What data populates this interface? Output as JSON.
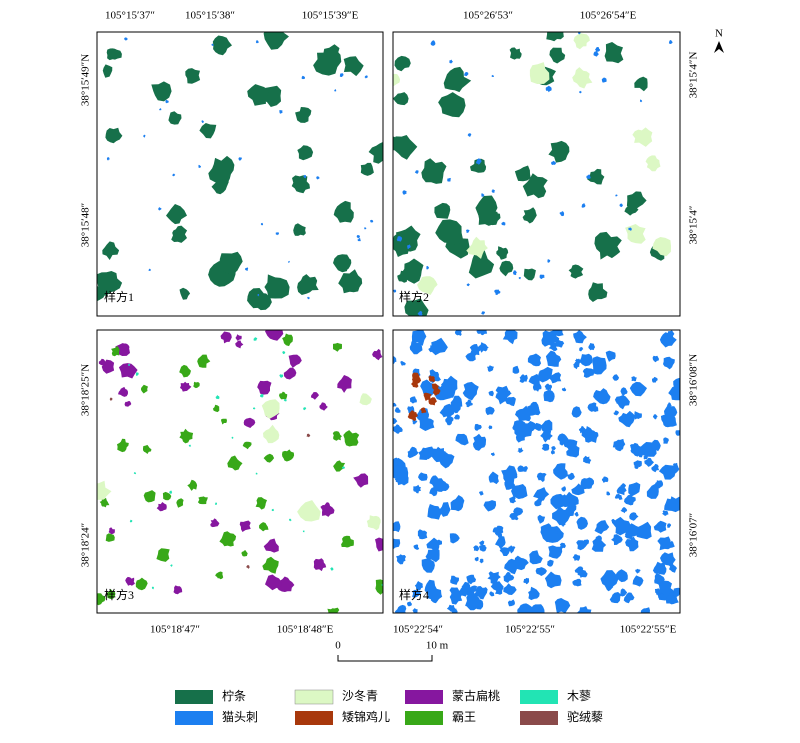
{
  "panels": [
    {
      "label": "样方1",
      "top": [
        "105°15′37″",
        "105°15′38″",
        "105°15′39″E"
      ],
      "left": [
        "38°15′49″N",
        "38°15′48″"
      ]
    },
    {
      "label": "样方2",
      "top": [
        "105°26′53″",
        "105°26′54″E"
      ],
      "right": [
        "38°15′4″N",
        "38°15′4″"
      ]
    },
    {
      "label": "样方3",
      "bottom": [
        "105°18′47″",
        "105°18′48″E"
      ],
      "left": [
        "38°18′25″N",
        "38°18′24″"
      ]
    },
    {
      "label": "样方4",
      "bottom": [
        "105°22′54″",
        "105°22′55″",
        "105°22′55″E"
      ],
      "right": [
        "38°16′08″N",
        "38°16′07″"
      ]
    }
  ],
  "north": "N",
  "scale_bar": {
    "start": "0",
    "end": "10 m"
  },
  "legend": [
    {
      "name": "柠条",
      "color": "#16704a"
    },
    {
      "name": "沙冬青",
      "color": "#dcf8c4"
    },
    {
      "name": "蒙古扁桃",
      "color": "#86179f"
    },
    {
      "name": "木蓼",
      "color": "#22e4b4"
    },
    {
      "name": "猫头刺",
      "color": "#1c7ff0"
    },
    {
      "name": "矮锦鸡儿",
      "color": "#a8380c"
    },
    {
      "name": "霸王",
      "color": "#38a818"
    },
    {
      "name": "驼绒藜",
      "color": "#8a4a4a"
    }
  ]
}
